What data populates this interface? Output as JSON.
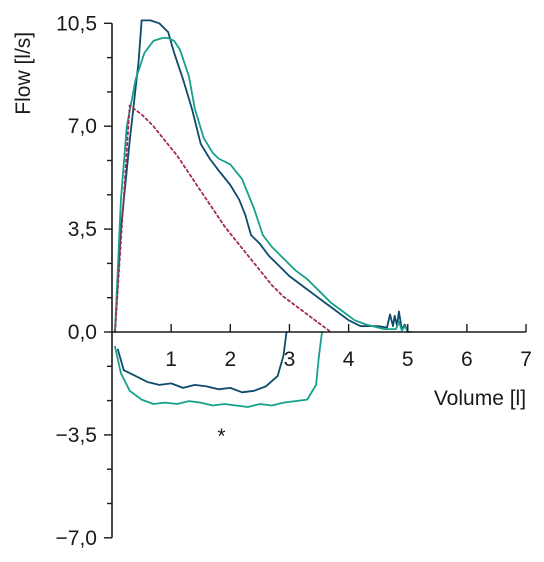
{
  "chart_data": {
    "type": "line",
    "title": "",
    "xlabel": "Volume [l]",
    "ylabel": "Flow [l/s]",
    "xlim": [
      0,
      7
    ],
    "ylim": [
      -7.0,
      10.5
    ],
    "x_ticks": [
      1,
      2,
      3,
      4,
      5,
      6,
      7
    ],
    "x_tick_labels": [
      "1",
      "2",
      "3",
      "4",
      "5",
      "6",
      "7"
    ],
    "y_ticks": [
      -7.0,
      -3.5,
      0,
      3.5,
      7.0,
      10.5
    ],
    "y_tick_labels": [
      "−7,0",
      "−3,5",
      "0,0",
      "3,5",
      "7,0",
      "10,5"
    ],
    "grid": false,
    "annotations": [
      {
        "text": "*",
        "x": 1.85,
        "y": -3.3
      }
    ],
    "series": [
      {
        "color": "#0e4a6b",
        "dashed": false,
        "x": [
          0.05,
          0.15,
          0.3,
          0.45,
          0.5,
          0.65,
          0.8,
          0.95,
          1.05,
          1.2,
          1.35,
          1.5,
          1.65,
          1.8,
          2.0,
          2.15,
          2.25,
          2.35,
          2.5,
          2.65,
          2.8,
          3.0,
          3.2,
          3.4,
          3.6,
          3.8,
          4.0,
          4.2,
          4.5,
          4.65,
          4.7,
          4.75,
          4.78,
          4.82,
          4.85,
          4.9,
          4.95,
          5.0
        ],
        "y": [
          0.0,
          3.5,
          6.5,
          9.2,
          10.6,
          10.6,
          10.5,
          10.2,
          9.5,
          8.6,
          7.6,
          6.4,
          5.9,
          5.5,
          5.0,
          4.5,
          4.0,
          3.3,
          3.0,
          2.6,
          2.3,
          1.9,
          1.6,
          1.3,
          1.0,
          0.7,
          0.4,
          0.2,
          0.2,
          0.15,
          0.6,
          0.2,
          0.55,
          0.2,
          0.7,
          0.1,
          0.25,
          0.0
        ]
      },
      {
        "color": "#0e4a6b",
        "dashed": false,
        "x": [
          0.1,
          0.2,
          0.4,
          0.6,
          0.8,
          1.0,
          1.2,
          1.4,
          1.6,
          1.8,
          2.0,
          2.2,
          2.4,
          2.6,
          2.8,
          2.9,
          2.95
        ],
        "y": [
          -0.6,
          -1.3,
          -1.5,
          -1.7,
          -1.8,
          -1.75,
          -1.9,
          -1.8,
          -1.85,
          -1.95,
          -1.9,
          -2.05,
          -2.0,
          -1.85,
          -1.5,
          -0.8,
          0.0
        ]
      },
      {
        "color": "#17a08a",
        "dashed": false,
        "x": [
          0.05,
          0.15,
          0.25,
          0.4,
          0.55,
          0.7,
          0.85,
          0.95,
          1.05,
          1.15,
          1.3,
          1.4,
          1.55,
          1.7,
          1.8,
          2.0,
          2.2,
          2.4,
          2.55,
          2.7,
          2.9,
          3.1,
          3.3,
          3.5,
          3.7,
          3.9,
          4.1,
          4.3,
          4.6,
          4.8,
          4.85,
          4.9,
          4.95,
          5.0,
          5.05
        ],
        "y": [
          0.0,
          4.5,
          7.0,
          8.6,
          9.5,
          9.9,
          10.0,
          10.0,
          9.9,
          9.6,
          8.7,
          7.6,
          6.6,
          6.1,
          5.9,
          5.7,
          5.2,
          4.2,
          3.3,
          2.9,
          2.5,
          2.1,
          1.8,
          1.4,
          1.0,
          0.7,
          0.4,
          0.25,
          0.1,
          0.1,
          0.35,
          0.05,
          0.2,
          0.0,
          0.0
        ]
      },
      {
        "color": "#17a08a",
        "dashed": false,
        "x": [
          0.05,
          0.15,
          0.3,
          0.5,
          0.7,
          0.9,
          1.1,
          1.3,
          1.5,
          1.7,
          1.9,
          2.1,
          2.3,
          2.5,
          2.7,
          2.9,
          3.1,
          3.3,
          3.45,
          3.5,
          3.55
        ],
        "y": [
          -0.5,
          -1.4,
          -2.0,
          -2.3,
          -2.45,
          -2.4,
          -2.45,
          -2.35,
          -2.4,
          -2.5,
          -2.45,
          -2.5,
          -2.55,
          -2.45,
          -2.5,
          -2.4,
          -2.35,
          -2.3,
          -1.8,
          -0.8,
          0.0
        ]
      },
      {
        "color": "#a32a55",
        "dashed": true,
        "x": [
          0.05,
          0.3,
          0.5,
          0.7,
          0.9,
          1.1,
          1.3,
          1.5,
          1.7,
          1.9,
          2.1,
          2.3,
          2.5,
          2.7,
          2.9,
          3.1,
          3.3,
          3.5,
          3.7
        ],
        "y": [
          0.0,
          7.7,
          7.4,
          7.0,
          6.5,
          6.0,
          5.4,
          4.8,
          4.2,
          3.6,
          3.1,
          2.6,
          2.1,
          1.6,
          1.2,
          0.9,
          0.6,
          0.3,
          0.0
        ]
      }
    ]
  }
}
